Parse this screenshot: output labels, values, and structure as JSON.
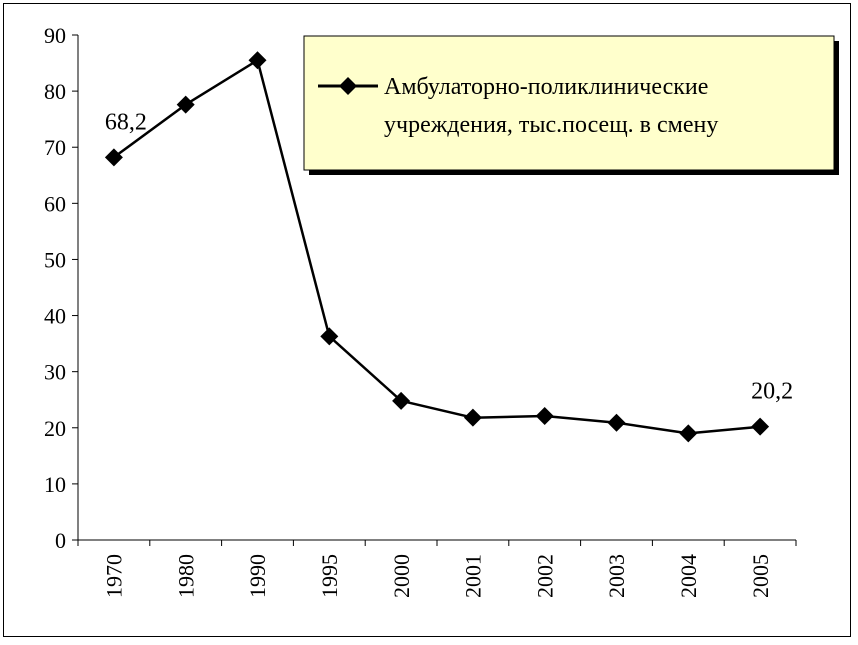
{
  "chart_data": {
    "type": "line",
    "categories": [
      "1970",
      "1980",
      "1990",
      "1995",
      "2000",
      "2001",
      "2002",
      "2003",
      "2004",
      "2005"
    ],
    "series": [
      {
        "name": "Амбулаторно-поликлинические учреждения, тыс.посещ. в смену",
        "values": [
          68.2,
          77.6,
          85.5,
          36.3,
          24.8,
          21.8,
          22.1,
          20.9,
          19.0,
          20.2
        ],
        "color": "#000000",
        "marker": "diamond"
      }
    ],
    "legend_lines": [
      "Амбулаторно-поликлинические",
      "учреждения, тыс.посещ. в смену"
    ],
    "data_labels": [
      {
        "index": 0,
        "text": "68,2"
      },
      {
        "index": 9,
        "text": "20,2"
      }
    ],
    "yticks": [
      "0",
      "10",
      "20",
      "30",
      "40",
      "50",
      "60",
      "70",
      "80",
      "90"
    ],
    "ylim": [
      0,
      90
    ],
    "grid": false,
    "legend_position": "top-right",
    "legend_background": "#ffffcc"
  }
}
